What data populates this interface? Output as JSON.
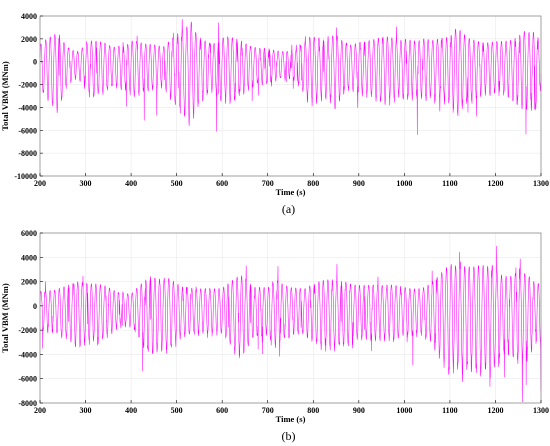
{
  "chart_data": [
    {
      "type": "line",
      "caption": "(a)",
      "xlabel": "Time (s)",
      "ylabel": "Total VBM (MNm)",
      "xlim": [
        200,
        1300
      ],
      "ylim": [
        -10000,
        4000
      ],
      "xticks": [
        200,
        300,
        400,
        500,
        600,
        700,
        800,
        900,
        1000,
        1100,
        1200,
        1300
      ],
      "yticks": [
        -10000,
        -8000,
        -6000,
        -4000,
        -2000,
        0,
        2000,
        4000
      ],
      "color": "#ff00ff",
      "grid": true,
      "seed": 17,
      "base_amp": 1000,
      "series": [
        {
          "x": [
            200,
            240,
            260,
            280,
            310,
            340,
            360,
            390,
            405,
            420,
            450,
            470,
            500,
            515,
            525,
            531,
            545,
            565,
            580,
            595,
            620,
            640,
            660,
            680,
            700,
            730,
            760,
            790,
            820,
            835,
            848,
            860,
            880,
            900,
            930,
            960,
            990,
            1005,
            1030,
            1045,
            1060,
            1080,
            1100,
            1115,
            1140,
            1160,
            1185,
            1200,
            1230,
            1250,
            1260,
            1275,
            1290,
            1300
          ],
          "y": [
            1500,
            3200,
            1800,
            1200,
            2100,
            1700,
            1300,
            1800,
            2600,
            2400,
            1900,
            1400,
            2400,
            3000,
            3400,
            4100,
            2900,
            2500,
            2200,
            2800,
            2400,
            1900,
            1400,
            1300,
            1500,
            1300,
            1200,
            2200,
            2100,
            2200,
            3000,
            2600,
            2100,
            2300,
            2100,
            2200,
            2100,
            2500,
            2600,
            2900,
            2400,
            2300,
            2200,
            3000,
            2300,
            2300,
            2400,
            2500,
            2100,
            2200,
            2700,
            2600,
            2800,
            1400
          ]
        }
      ]
    },
    {
      "type": "line",
      "caption": "(b)",
      "xlabel": "Time (s)",
      "ylabel": "Total VBM (MNm)",
      "xlim": [
        200,
        1300
      ],
      "ylim": [
        -8000,
        6000
      ],
      "xticks": [
        200,
        300,
        400,
        500,
        600,
        700,
        800,
        900,
        1000,
        1100,
        1200,
        1300
      ],
      "yticks": [
        -8000,
        -6000,
        -4000,
        -2000,
        0,
        2000,
        4000,
        6000
      ],
      "color": "#ff00ff",
      "grid": true,
      "seed": 41,
      "base_amp": 1200,
      "series": [
        {
          "x": [
            200,
            230,
            260,
            280,
            310,
            340,
            370,
            400,
            420,
            440,
            460,
            480,
            510,
            540,
            570,
            600,
            620,
            640,
            670,
            700,
            720,
            750,
            780,
            800,
            840,
            870,
            900,
            920,
            950,
            980,
            1010,
            1040,
            1060,
            1080,
            1100,
            1120,
            1150,
            1170,
            1180,
            1195,
            1210,
            1230,
            1250,
            1270,
            1290,
            1300
          ],
          "y": [
            1200,
            1500,
            2400,
            2800,
            2100,
            1700,
            1200,
            1300,
            2500,
            3300,
            2600,
            2400,
            1600,
            1700,
            2100,
            1900,
            2300,
            2600,
            1600,
            1900,
            3000,
            2000,
            1500,
            1800,
            2500,
            2800,
            2300,
            2000,
            1700,
            1800,
            1900,
            2100,
            2500,
            3000,
            3500,
            3200,
            3800,
            4600,
            4600,
            4800,
            3400,
            2700,
            2900,
            2600,
            1900,
            2300
          ]
        }
      ]
    }
  ]
}
